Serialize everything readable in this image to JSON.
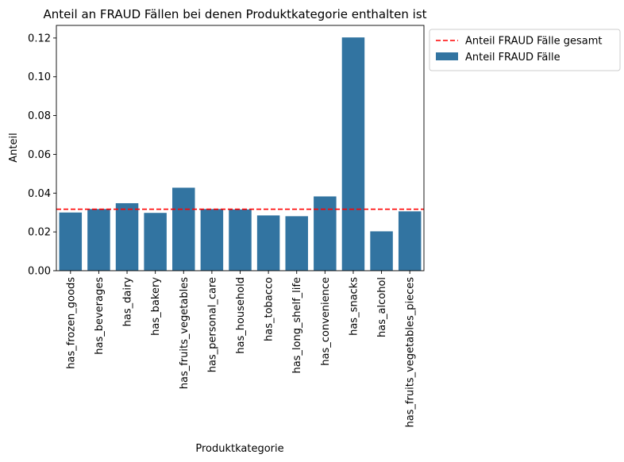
{
  "chart_data": {
    "type": "bar",
    "title": "Anteil an FRAUD Fällen bei denen Produktkategorie enthalten ist",
    "xlabel": "Produktkategorie",
    "ylabel": "Anteil",
    "ylim": [
      0,
      0.1265
    ],
    "yticks": [
      "0.00",
      "0.02",
      "0.04",
      "0.06",
      "0.08",
      "0.10",
      "0.12"
    ],
    "categories": [
      "has_frozen_goods",
      "has_beverages",
      "has_dairy",
      "has_bakery",
      "has_fruits_vegetables",
      "has_personal_care",
      "has_household",
      "has_tobacco",
      "has_long_shelf_life",
      "has_convenience",
      "has_snacks",
      "has_alcohol",
      "has_fruits_vegetables_pieces"
    ],
    "series": [
      {
        "name": "Anteil FRAUD Fälle",
        "color": "#3274a1",
        "values": [
          0.03,
          0.0318,
          0.0348,
          0.0298,
          0.0428,
          0.0318,
          0.0316,
          0.0285,
          0.0281,
          0.0383,
          0.1203,
          0.0203,
          0.0306
        ]
      }
    ],
    "reference_line": {
      "name": "Anteil FRAUD Fälle gesamt",
      "value": 0.0317,
      "color": "#ff0000",
      "style": "dashed"
    },
    "legend": {
      "placement": "outside-right-top",
      "entries": [
        "Anteil FRAUD Fälle gesamt",
        "Anteil FRAUD Fälle"
      ]
    },
    "grid": false
  }
}
